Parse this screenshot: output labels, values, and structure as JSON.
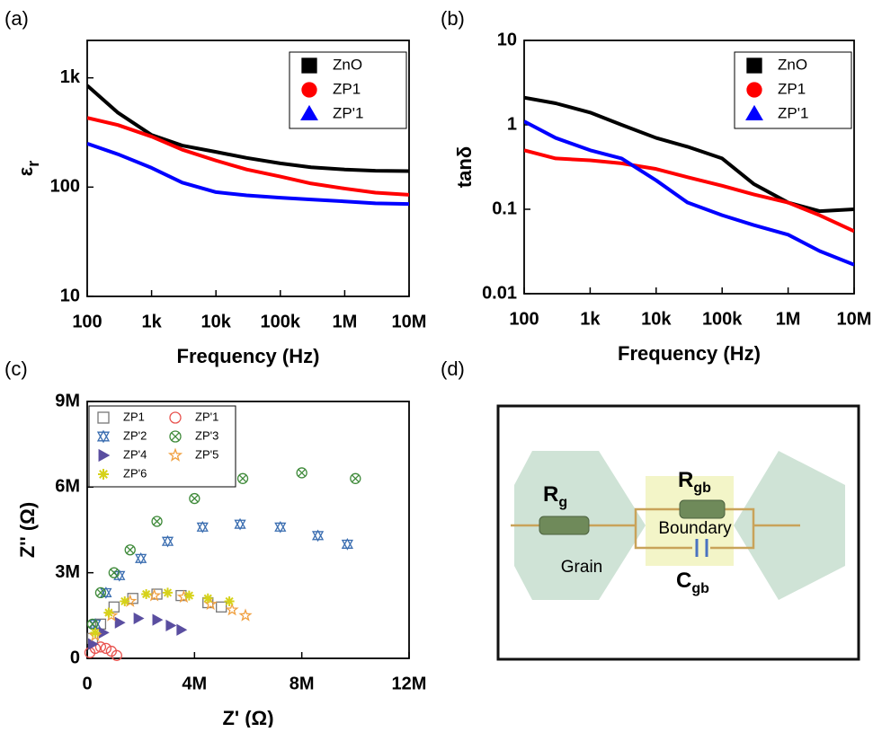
{
  "chart_data": [
    {
      "type": "line",
      "panel_label": "(a)",
      "xlabel": "Frequency (Hz)",
      "ylabel": {
        "text": "ε",
        "subscript": "r"
      },
      "xlog": true,
      "ylog": true,
      "xlim": [
        100,
        10000000
      ],
      "ylim": [
        10,
        2200
      ],
      "xticks": [
        100,
        {
          "value": 1000,
          "label": "1k"
        },
        {
          "value": 10000,
          "label": "10k"
        },
        {
          "value": 100000,
          "label": "100k"
        },
        {
          "value": 1000000,
          "label": "1M"
        },
        {
          "value": 10000000,
          "label": "10M"
        }
      ],
      "yticks": [
        10,
        100,
        {
          "value": 1000,
          "label": "1k"
        }
      ],
      "legend": "upper right",
      "x": [
        100,
        300,
        1000,
        3000,
        10000,
        30000,
        100000,
        300000,
        1000000,
        3000000,
        10000000
      ],
      "series": [
        {
          "name": "ZnO",
          "color": "#000000",
          "marker": "square",
          "values": [
            850,
            480,
            300,
            240,
            210,
            185,
            165,
            152,
            145,
            141,
            140
          ]
        },
        {
          "name": "ZP1",
          "color": "#ff0000",
          "marker": "circle",
          "values": [
            430,
            370,
            290,
            220,
            175,
            145,
            125,
            108,
            97,
            89,
            85
          ]
        },
        {
          "name": "ZP'1",
          "color": "#0000ff",
          "marker": "triangle",
          "values": [
            250,
            200,
            150,
            110,
            90,
            84,
            80,
            77,
            74,
            71,
            70
          ]
        }
      ]
    },
    {
      "type": "line",
      "panel_label": "(b)",
      "xlabel": "Frequency (Hz)",
      "ylabel": "tanδ",
      "xlog": true,
      "ylog": true,
      "xlim": [
        100,
        10000000
      ],
      "ylim": [
        0.01,
        10
      ],
      "xticks": [
        100,
        {
          "value": 1000,
          "label": "1k"
        },
        {
          "value": 10000,
          "label": "10k"
        },
        {
          "value": 100000,
          "label": "100k"
        },
        {
          "value": 1000000,
          "label": "1M"
        },
        {
          "value": 10000000,
          "label": "10M"
        }
      ],
      "yticks": [
        0.01,
        0.1,
        1,
        10
      ],
      "legend": "upper right",
      "x": [
        100,
        300,
        1000,
        3000,
        10000,
        30000,
        100000,
        300000,
        1000000,
        3000000,
        10000000
      ],
      "series": [
        {
          "name": "ZnO",
          "color": "#000000",
          "marker": "square",
          "values": [
            2.1,
            1.8,
            1.4,
            1.0,
            0.7,
            0.55,
            0.4,
            0.2,
            0.12,
            0.095,
            0.1
          ]
        },
        {
          "name": "ZP1",
          "color": "#ff0000",
          "marker": "circle",
          "values": [
            0.5,
            0.4,
            0.38,
            0.35,
            0.3,
            0.24,
            0.19,
            0.15,
            0.12,
            0.085,
            0.055
          ]
        },
        {
          "name": "ZP'1",
          "color": "#0000ff",
          "marker": "triangle",
          "values": [
            1.1,
            0.7,
            0.5,
            0.4,
            0.22,
            0.12,
            0.085,
            0.065,
            0.05,
            0.032,
            0.022
          ]
        }
      ]
    },
    {
      "type": "scatter",
      "panel_label": "(c)",
      "xlabel": "Z' (Ω)",
      "ylabel": "Z'' (Ω)",
      "xlog": false,
      "ylog": false,
      "xlim": [
        0,
        12000000
      ],
      "ylim": [
        0,
        9000000
      ],
      "xticks": [
        0,
        {
          "value": 4000000,
          "label": "4M"
        },
        {
          "value": 8000000,
          "label": "8M"
        },
        {
          "value": 12000000,
          "label": "12M"
        }
      ],
      "yticks": [
        0,
        {
          "value": 3000000,
          "label": "3M"
        },
        {
          "value": 6000000,
          "label": "6M"
        },
        {
          "value": 9000000,
          "label": "9M"
        }
      ],
      "legend": "upper left",
      "series": [
        {
          "name": "ZP1",
          "color": "#777777",
          "marker": "square",
          "x": [
            200000,
            500000,
            1000000,
            1700000,
            2600000,
            3500000,
            4500000,
            5000000
          ],
          "values": [
            700000,
            1200000,
            1800000,
            2100000,
            2250000,
            2200000,
            1950000,
            1800000
          ]
        },
        {
          "name": "ZP'1",
          "color": "#e8534f",
          "marker": "circle",
          "x": [
            100000,
            300000,
            500000,
            700000,
            900000,
            1100000
          ],
          "values": [
            200000,
            350000,
            400000,
            350000,
            250000,
            100000
          ]
        },
        {
          "name": "ZP'2",
          "color": "#3a6db0",
          "marker": "tri-x",
          "x": [
            300000,
            700000,
            1200000,
            2000000,
            3000000,
            4300000,
            5700000,
            7200000,
            8600000,
            9700000
          ],
          "values": [
            1200000,
            2300000,
            2900000,
            3500000,
            4100000,
            4600000,
            4700000,
            4600000,
            4300000,
            4000000
          ]
        },
        {
          "name": "ZP'3",
          "color": "#3f8a3a",
          "marker": "circle-x",
          "x": [
            200000,
            500000,
            1000000,
            1600000,
            2600000,
            4000000,
            5800000,
            8000000,
            10000000
          ],
          "values": [
            1200000,
            2300000,
            3000000,
            3800000,
            4800000,
            5600000,
            6300000,
            6500000,
            6300000
          ]
        },
        {
          "name": "ZP'4",
          "color": "#5a4ea0",
          "marker": "tri-right",
          "x": [
            200000,
            600000,
            1200000,
            1900000,
            2600000,
            3100000,
            3500000
          ],
          "values": [
            500000,
            900000,
            1250000,
            1400000,
            1350000,
            1150000,
            1000000
          ]
        },
        {
          "name": "ZP'5",
          "color": "#f0a040",
          "marker": "star",
          "x": [
            300000,
            900000,
            1600000,
            2500000,
            3600000,
            4600000,
            5400000,
            5900000
          ],
          "values": [
            800000,
            1500000,
            2000000,
            2200000,
            2150000,
            1900000,
            1700000,
            1500000
          ]
        },
        {
          "name": "ZP'6",
          "color": "#d6d21a",
          "marker": "asterisk",
          "x": [
            300000,
            800000,
            1400000,
            2200000,
            3000000,
            3800000,
            4500000,
            5300000
          ],
          "values": [
            900000,
            1600000,
            2000000,
            2250000,
            2300000,
            2200000,
            2100000,
            2000000
          ]
        }
      ]
    }
  ],
  "diagram": {
    "panel_label": "(d)",
    "grain_resistor": {
      "text": "R",
      "subscript": "g"
    },
    "grain": "Grain",
    "boundary": "Boundary",
    "boundary_resistor": {
      "text": "R",
      "subscript": "gb"
    },
    "boundary_capacitor": {
      "text": "C",
      "subscript": "gb"
    }
  }
}
